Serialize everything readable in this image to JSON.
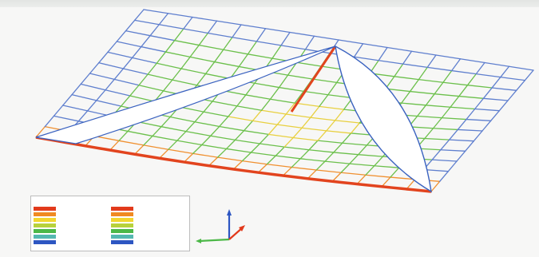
{
  "viewer": {
    "legend": {
      "columns": [
        {
          "title": "",
          "entries": [
            {
              "color": "#e23a1c",
              "range": ""
            },
            {
              "color": "#f08a22",
              "range": ""
            },
            {
              "color": "#f2d630",
              "range": ""
            },
            {
              "color": "#b8d23c",
              "range": ""
            },
            {
              "color": "#4cb848",
              "range": ""
            },
            {
              "color": "#54b8b0",
              "range": ""
            },
            {
              "color": "#2d56c2",
              "range": ""
            }
          ]
        },
        {
          "title": "",
          "entries": [
            {
              "color": "#e23a1c",
              "range": ""
            },
            {
              "color": "#f08a22",
              "range": ""
            },
            {
              "color": "#f2d630",
              "range": ""
            },
            {
              "color": "#b8d23c",
              "range": ""
            },
            {
              "color": "#4cb848",
              "range": ""
            },
            {
              "color": "#54b8b0",
              "range": ""
            },
            {
              "color": "#2d56c2",
              "range": ""
            }
          ]
        }
      ]
    },
    "axes": {
      "x_color": "#e23a1c",
      "y_color": "#4cb848",
      "z_color": "#2d56c2"
    },
    "colors": {
      "mesh_blue": "#5f7fce",
      "mesh_green": "#6cc04c",
      "mesh_yellow": "#e8d040",
      "mesh_orange": "#f09030",
      "edge_red": "#e2441e",
      "cable_blue": "#3a62c0",
      "background": "#f7f7f6"
    }
  }
}
